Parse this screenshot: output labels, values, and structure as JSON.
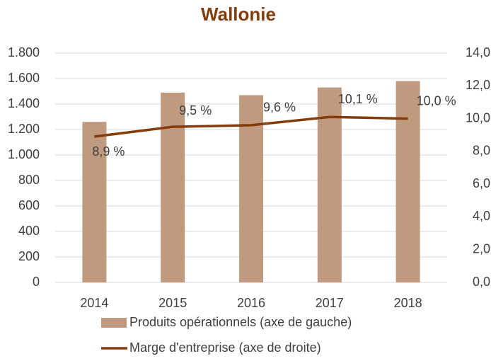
{
  "chart_data": {
    "type": "bar",
    "title": "Wallonie",
    "categories": [
      "2014",
      "2015",
      "2016",
      "2017",
      "2018"
    ],
    "series": [
      {
        "name": "Produits opérationnels (axe de gauche)",
        "type": "bar",
        "color": "#bf9a7f",
        "values": [
          1260,
          1490,
          1470,
          1530,
          1580
        ]
      },
      {
        "name": "Marge d'entreprise (axe de droite)",
        "type": "line",
        "axis": "y2",
        "color": "#843c0c",
        "values": [
          8.9,
          9.5,
          9.6,
          10.1,
          10.0
        ],
        "value_labels": [
          "8,9 %",
          "9,5 %",
          "9,6 %",
          "10,1 %",
          "10,0 %"
        ]
      }
    ],
    "ylim": [
      0,
      1800
    ],
    "yticks": [
      0,
      200,
      400,
      600,
      800,
      {
        "value": 1000,
        "label": "1.000"
      },
      {
        "value": 1200,
        "label": "1.200"
      },
      {
        "value": 1400,
        "label": "1.400"
      },
      {
        "value": 1600,
        "label": "1.600"
      },
      {
        "value": 1800,
        "label": "1.800"
      }
    ],
    "y2lim": [
      0,
      14
    ],
    "y2ticks": [
      {
        "value": 0,
        "label": "0,0"
      },
      {
        "value": 2,
        "label": "2,0"
      },
      {
        "value": 4,
        "label": "4,0"
      },
      {
        "value": 6,
        "label": "6,0"
      },
      {
        "value": 8,
        "label": "8,0"
      },
      {
        "value": 10,
        "label": "10,0"
      },
      {
        "value": 12,
        "label": "12,0"
      },
      {
        "value": 14,
        "label": "14,0"
      }
    ],
    "grid": true
  }
}
